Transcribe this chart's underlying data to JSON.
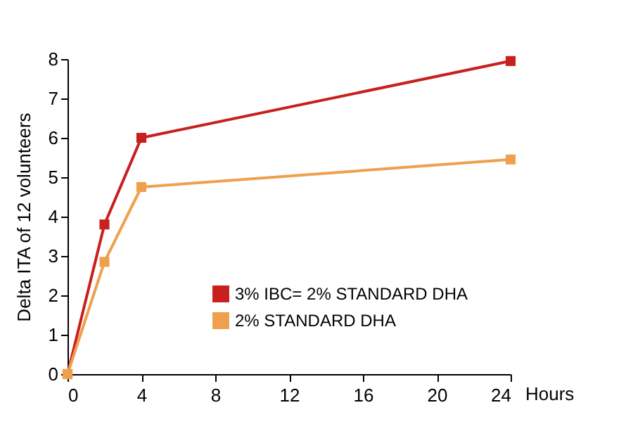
{
  "chart_data": {
    "type": "line",
    "xlabel": "Hours",
    "ylabel": "Delta ITA of 12 volunteers",
    "x": [
      0,
      2,
      4,
      24
    ],
    "series": [
      {
        "name": "3% IBC= 2% STANDARD DHA",
        "color": "#c8201e",
        "values": [
          0,
          3.8,
          6.0,
          7.95
        ]
      },
      {
        "name": "2% STANDARD DHA",
        "color": "#eea04e",
        "values": [
          0,
          2.85,
          4.75,
          5.45
        ]
      }
    ],
    "xlim": [
      0,
      24
    ],
    "xticks": [
      0,
      4,
      8,
      12,
      16,
      20,
      24
    ],
    "ylim": [
      0,
      8
    ],
    "yticks": [
      0,
      1,
      2,
      3,
      4,
      5,
      6,
      7,
      8
    ],
    "legend": "bottom right",
    "marker": "square",
    "line_style": "solid"
  }
}
